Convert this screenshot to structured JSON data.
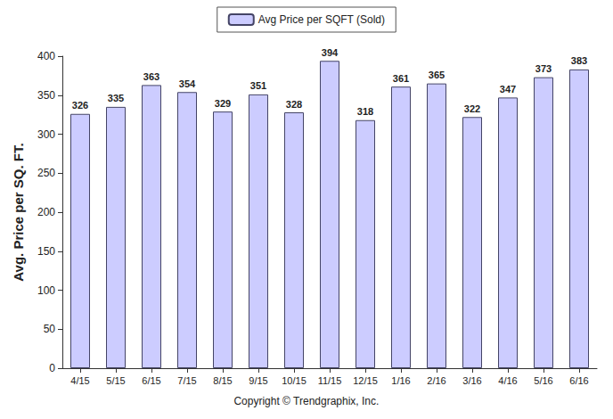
{
  "chart_data": {
    "type": "bar",
    "y_label": "Avg. Price per SQ. FT.",
    "annotations": [
      "Copyright © Trendgraphix, Inc."
    ],
    "categories": [
      "4/15",
      "5/15",
      "6/15",
      "7/15",
      "8/15",
      "9/15",
      "10/15",
      "11/15",
      "12/15",
      "1/16",
      "2/16",
      "3/16",
      "4/16",
      "5/16",
      "6/16"
    ],
    "series": [
      {
        "name": "Avg Price per SQFT (Sold)",
        "color": "#ccccff",
        "values": [
          326,
          335,
          363,
          354,
          329,
          351,
          328,
          394,
          318,
          361,
          365,
          322,
          347,
          373,
          383
        ]
      }
    ],
    "ylim": [
      0,
      400
    ],
    "yticks": [
      0,
      50,
      100,
      150,
      200,
      250,
      300,
      350,
      400
    ],
    "grid": false,
    "legend": "top",
    "data_labels": true
  }
}
